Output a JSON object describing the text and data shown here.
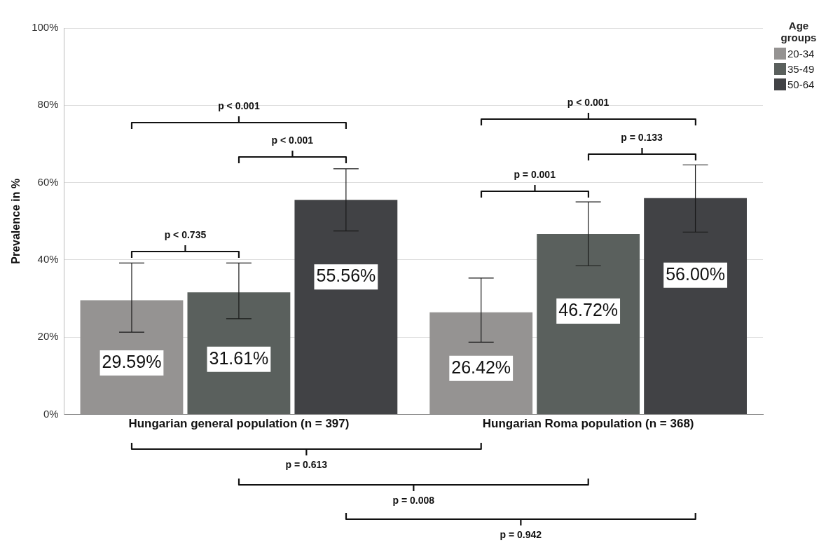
{
  "chart_data": {
    "type": "bar",
    "categories": [
      "Hungarian general population (n = 397)",
      "Hungarian Roma population (n = 368)"
    ],
    "series": [
      {
        "name": "20-34",
        "color": "#959392",
        "values": [
          29.59,
          26.42
        ],
        "value_labels": [
          "29.59%",
          "26.42%"
        ],
        "errors": [
          [
            21.3,
            39.2
          ],
          [
            18.7,
            35.3
          ]
        ]
      },
      {
        "name": "35-49",
        "color": "#5a605d",
        "values": [
          31.61,
          46.72
        ],
        "value_labels": [
          "31.61%",
          "46.72%"
        ],
        "errors": [
          [
            24.8,
            39.2
          ],
          [
            38.5,
            55.0
          ]
        ]
      },
      {
        "name": "50-64",
        "color": "#414245",
        "values": [
          55.56,
          56.0
        ],
        "value_labels": [
          "55.56%",
          "56.00%"
        ],
        "errors": [
          [
            47.5,
            63.6
          ],
          [
            47.2,
            64.6
          ]
        ]
      }
    ],
    "ylabel": "Prevalence in %",
    "legend_title": "Age groups",
    "ylim": [
      0,
      100
    ],
    "yticks": [
      {
        "value": 0,
        "label": "0%"
      },
      {
        "value": 20,
        "label": "20%"
      },
      {
        "value": 40,
        "label": "40%"
      },
      {
        "value": 60,
        "label": "60%"
      },
      {
        "value": 80,
        "label": "80%"
      },
      {
        "value": 100,
        "label": "100%"
      }
    ],
    "grid": "y",
    "legend": "top right",
    "annotations": [
      "p < 0.001",
      "p < 0.001",
      "p < 0.735",
      "p < 0.001",
      "p = 0.133",
      "p = 0.001",
      "p = 0.613",
      "p = 0.008",
      "p = 0.942"
    ]
  }
}
